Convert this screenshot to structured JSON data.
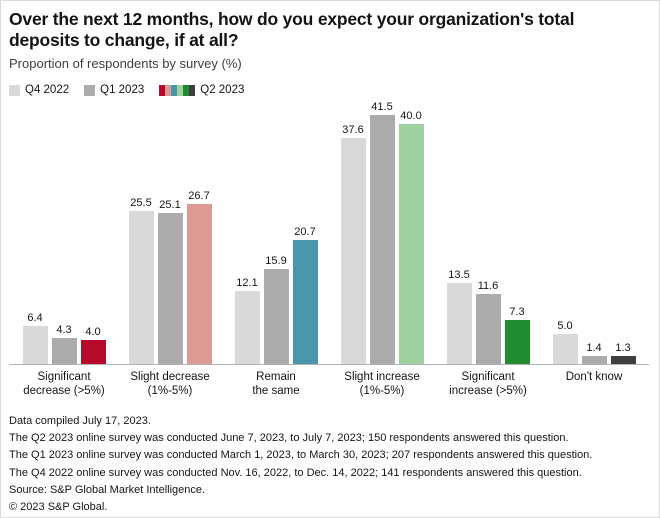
{
  "header": {
    "title": "Over the next 12 months, how do you expect your organization's total deposits to change, if at all?",
    "subtitle": "Proportion of respondents by survey (%)"
  },
  "chart_data": {
    "type": "bar",
    "title": "Over the next 12 months, how do you expect your organization's total deposits to change, if at all?",
    "ylabel": "Proportion of respondents by survey (%)",
    "xlabel": "",
    "ylim": [
      0,
      44
    ],
    "grid": false,
    "legend_position": "top-left",
    "value_labels": true,
    "categories": [
      "Significant decrease (>5%)",
      "Slight decrease (1%-5%)",
      "Remain the same",
      "Slight increase (1%-5%)",
      "Significant increase (>5%)",
      "Don't know"
    ],
    "category_label_lines": [
      [
        "Significant",
        "decrease (>5%)"
      ],
      [
        "Slight decrease",
        "(1%-5%)"
      ],
      [
        "Remain",
        "the same"
      ],
      [
        "Slight increase",
        "(1%-5%)"
      ],
      [
        "Significant",
        "increase (>5%)"
      ],
      [
        "Don't know"
      ]
    ],
    "series": [
      {
        "name": "Q4 2022",
        "color": "#d9d9d9",
        "values": [
          6.4,
          25.5,
          12.1,
          37.6,
          13.5,
          5.0
        ]
      },
      {
        "name": "Q1 2023",
        "color": "#ababab",
        "values": [
          4.3,
          25.1,
          15.9,
          41.5,
          11.6,
          1.4
        ]
      },
      {
        "name": "Q2 2023",
        "colors": [
          "#b60a2d",
          "#dc9a93",
          "#4996ac",
          "#9ed0a0",
          "#218c2d",
          "#3f3f3f"
        ],
        "values": [
          4.0,
          26.7,
          20.7,
          40.0,
          7.3,
          1.3
        ]
      }
    ],
    "axis_line_color": "#b3b3b3"
  },
  "footer": {
    "lines": [
      "Data compiled July 17, 2023.",
      "The Q2 2023 online survey was conducted June 7, 2023, to July 7, 2023; 150 respondents answered this question.",
      "The Q1 2023 online survey was conducted March 1, 2023, to March 30, 2023; 207 respondents answered this question.",
      "The Q4 2022 online survey was conducted Nov. 16, 2022, to Dec. 14, 2022; 141 respondents answered this question.",
      "Source: S&P Global Market Intelligence.",
      "© 2023 S&P Global."
    ]
  }
}
